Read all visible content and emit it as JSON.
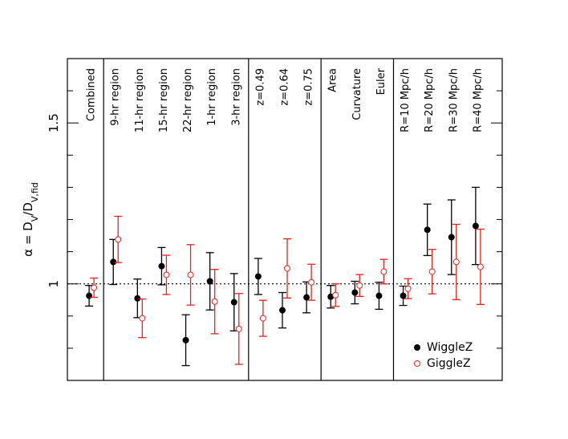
{
  "chart_data": {
    "type": "errorbar",
    "y_label": [
      "α  =  D",
      "V",
      "/D",
      "V,fid"
    ],
    "categories": [
      "Combined",
      "9-hr region",
      "11-hr region",
      "15-hr region",
      "22-hr region",
      "1-hr region",
      "3-hr region",
      "z=0.49",
      "z=0.64",
      "z=0.75",
      "Area",
      "Curvature",
      "Euler",
      "R=10 Mpc/h",
      "R=20 Mpc/h",
      "R=30 Mpc/h",
      "R=40 Mpc/h"
    ],
    "group_separators": [
      0.5,
      6.5,
      9.5,
      12.5
    ],
    "series": [
      {
        "name": "WiggleZ",
        "color": "#000000",
        "marker": "filled",
        "values": [
          0.963,
          1.068,
          0.955,
          1.055,
          0.825,
          1.008,
          0.943,
          1.023,
          0.918,
          0.958,
          0.96,
          0.973,
          0.963,
          0.963,
          1.168,
          1.145,
          1.18
        ],
        "errors": [
          0.032,
          0.07,
          0.06,
          0.058,
          0.079,
          0.089,
          0.089,
          0.056,
          0.055,
          0.048,
          0.035,
          0.035,
          0.042,
          0.03,
          0.08,
          0.116,
          0.12
        ]
      },
      {
        "name": "GiggleZ",
        "color": "#e8211c",
        "marker": "open",
        "values": [
          0.988,
          1.138,
          0.893,
          1.028,
          1.028,
          0.945,
          0.86,
          0.893,
          1.048,
          1.005,
          0.965,
          0.995,
          1.038,
          0.985,
          1.038,
          1.068,
          1.053
        ],
        "errors": [
          0.03,
          0.072,
          0.06,
          0.061,
          0.094,
          0.1,
          0.11,
          0.056,
          0.092,
          0.056,
          0.035,
          0.034,
          0.038,
          0.031,
          0.069,
          0.117,
          0.117
        ]
      }
    ],
    "xlim": [
      -1,
      17
    ],
    "ylim": [
      0.7,
      1.7
    ],
    "yticks": [
      1,
      1.5
    ],
    "yminor_ticks": [
      0.8,
      0.9,
      1.1,
      1.2,
      1.3,
      1.4,
      1.6
    ],
    "reference_line": 1,
    "legend": "lower right"
  }
}
